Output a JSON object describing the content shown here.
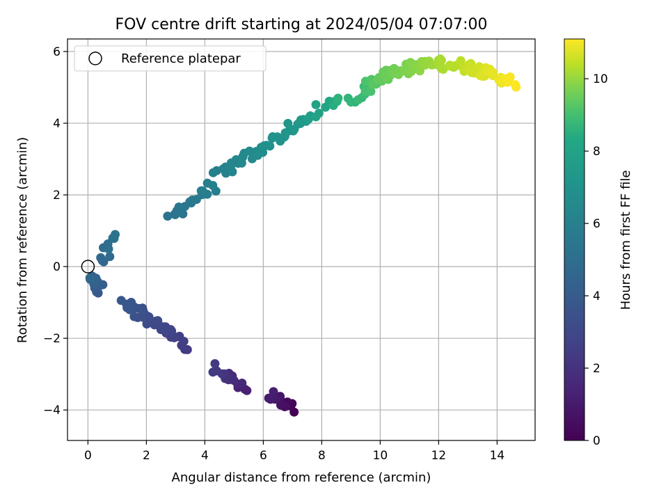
{
  "chart_data": {
    "type": "scatter",
    "title": "FOV centre drift starting at 2024/05/04 07:07:00",
    "xlabel": "Angular distance from reference (arcmin)",
    "ylabel": "Rotation from reference (arcmin)",
    "xlim": [
      -0.7,
      15.3
    ],
    "ylim": [
      -4.85,
      6.35
    ],
    "xticks": [
      0,
      2,
      4,
      6,
      8,
      10,
      12,
      14
    ],
    "xtick_labels": [
      "0",
      "2",
      "4",
      "6",
      "8",
      "10",
      "12",
      "14"
    ],
    "yticks": [
      -4,
      -2,
      0,
      2,
      4,
      6
    ],
    "ytick_labels": [
      "−4",
      "−2",
      "0",
      "2",
      "4",
      "6"
    ],
    "grid": true,
    "legend": {
      "placement": "top-left",
      "entries": [
        {
          "label": "Reference platepar",
          "marker": "open-circle"
        }
      ]
    },
    "reference_point": {
      "x": 0,
      "y": 0
    },
    "colorbar": {
      "label": "Hours from first FF file",
      "colormap": "viridis",
      "range": [
        0,
        11.1
      ],
      "ticks": [
        0,
        2,
        4,
        6,
        8,
        10
      ],
      "tick_labels": [
        "0",
        "2",
        "4",
        "6",
        "8",
        "10"
      ]
    },
    "segments": [
      {
        "t_start": 0.0,
        "t_end": 1.2,
        "x_start": 7.0,
        "y_start": -4.0,
        "x_end": 6.2,
        "y_end": -3.6,
        "n": 14
      },
      {
        "t_start": 1.2,
        "t_end": 2.4,
        "x_start": 5.4,
        "y_start": -3.4,
        "x_end": 4.3,
        "y_end": -2.8,
        "n": 16
      },
      {
        "t_start": 2.4,
        "t_end": 3.8,
        "x_start": 3.4,
        "y_start": -2.2,
        "x_end": 1.2,
        "y_end": -1.0,
        "n": 40
      },
      {
        "t_start": 3.8,
        "t_end": 4.6,
        "x_start": 0.4,
        "y_start": -0.7,
        "x_end": 0.2,
        "y_end": -0.2,
        "n": 12
      },
      {
        "t_start": 4.6,
        "t_end": 5.2,
        "x_start": 0.4,
        "y_start": 0.1,
        "x_end": 1.0,
        "y_end": 0.8,
        "n": 10
      },
      {
        "t_start": 5.2,
        "t_end": 6.0,
        "x_start": 2.8,
        "y_start": 1.4,
        "x_end": 4.3,
        "y_end": 2.3,
        "n": 18
      },
      {
        "t_start": 6.0,
        "t_end": 7.4,
        "x_start": 4.4,
        "y_start": 2.5,
        "x_end": 7.3,
        "y_end": 4.0,
        "n": 40
      },
      {
        "t_start": 7.4,
        "t_end": 8.6,
        "x_start": 7.3,
        "y_start": 4.0,
        "x_end": 8.5,
        "y_end": 4.7,
        "n": 16
      },
      {
        "t_start": 8.6,
        "t_end": 9.4,
        "x_start": 9.0,
        "y_start": 4.6,
        "x_end": 10.0,
        "y_end": 5.3,
        "n": 16
      },
      {
        "t_start": 9.4,
        "t_end": 11.1,
        "x_start": 10.0,
        "y_start": 5.3,
        "x_end": 14.6,
        "y_end": 5.1,
        "n": 90,
        "arc": 0.45
      }
    ]
  }
}
